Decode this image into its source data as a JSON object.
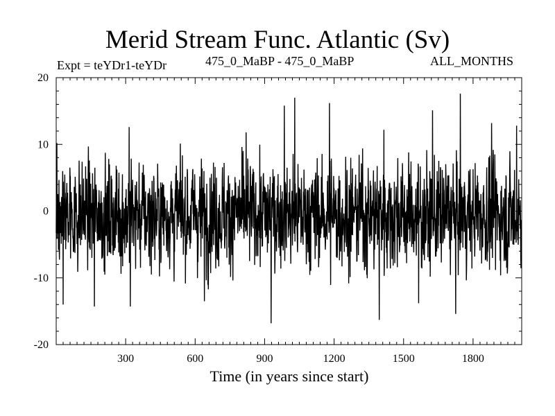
{
  "chart_data": {
    "type": "line",
    "title": "Merid Stream Func. Atlantic (Sv)",
    "subtitle_left": "Expt = teYDr1-teYDr",
    "subtitle_center": "475_0_MaBP - 475_0_MaBP",
    "subtitle_right": "ALL_MONTHS",
    "xlabel": "Time (in years since start)",
    "ylabel": "",
    "xlim": [
      0,
      2010
    ],
    "ylim": [
      -20,
      20
    ],
    "xticks": [
      300,
      600,
      900,
      1200,
      1500,
      1800
    ],
    "xtick_labels": [
      "300",
      "600",
      "900",
      "1200",
      "1500",
      "1800"
    ],
    "yticks": [
      -20,
      -10,
      0,
      10,
      20
    ],
    "ytick_labels": [
      "-20",
      "-10",
      "0",
      "10",
      "20"
    ],
    "series": [
      {
        "name": "Merid Stream Func. Atlantic",
        "color": "#000000",
        "description": "annual time series, 2010 years, fluctuating roughly between -14 and +12 Sv around 0",
        "n_points": 2010,
        "mean": -0.5,
        "std": 4.2,
        "extremes": [
          {
            "x": 3,
            "y": 10.2
          },
          {
            "x": 30,
            "y": -14.0
          },
          {
            "x": 165,
            "y": -14.3
          },
          {
            "x": 315,
            "y": 12.6
          },
          {
            "x": 320,
            "y": -14.3
          },
          {
            "x": 640,
            "y": -13.5
          },
          {
            "x": 820,
            "y": 11.8
          },
          {
            "x": 928,
            "y": -16.8
          },
          {
            "x": 985,
            "y": 15.8
          },
          {
            "x": 1030,
            "y": 17.0
          },
          {
            "x": 1180,
            "y": 16.2
          },
          {
            "x": 1395,
            "y": -16.3
          },
          {
            "x": 1415,
            "y": 12.2
          },
          {
            "x": 1565,
            "y": -13.8
          },
          {
            "x": 1625,
            "y": 15.1
          },
          {
            "x": 1725,
            "y": -15.4
          },
          {
            "x": 1745,
            "y": 17.6
          },
          {
            "x": 1880,
            "y": 13.2
          },
          {
            "x": 1988,
            "y": 12.8
          }
        ]
      }
    ]
  }
}
